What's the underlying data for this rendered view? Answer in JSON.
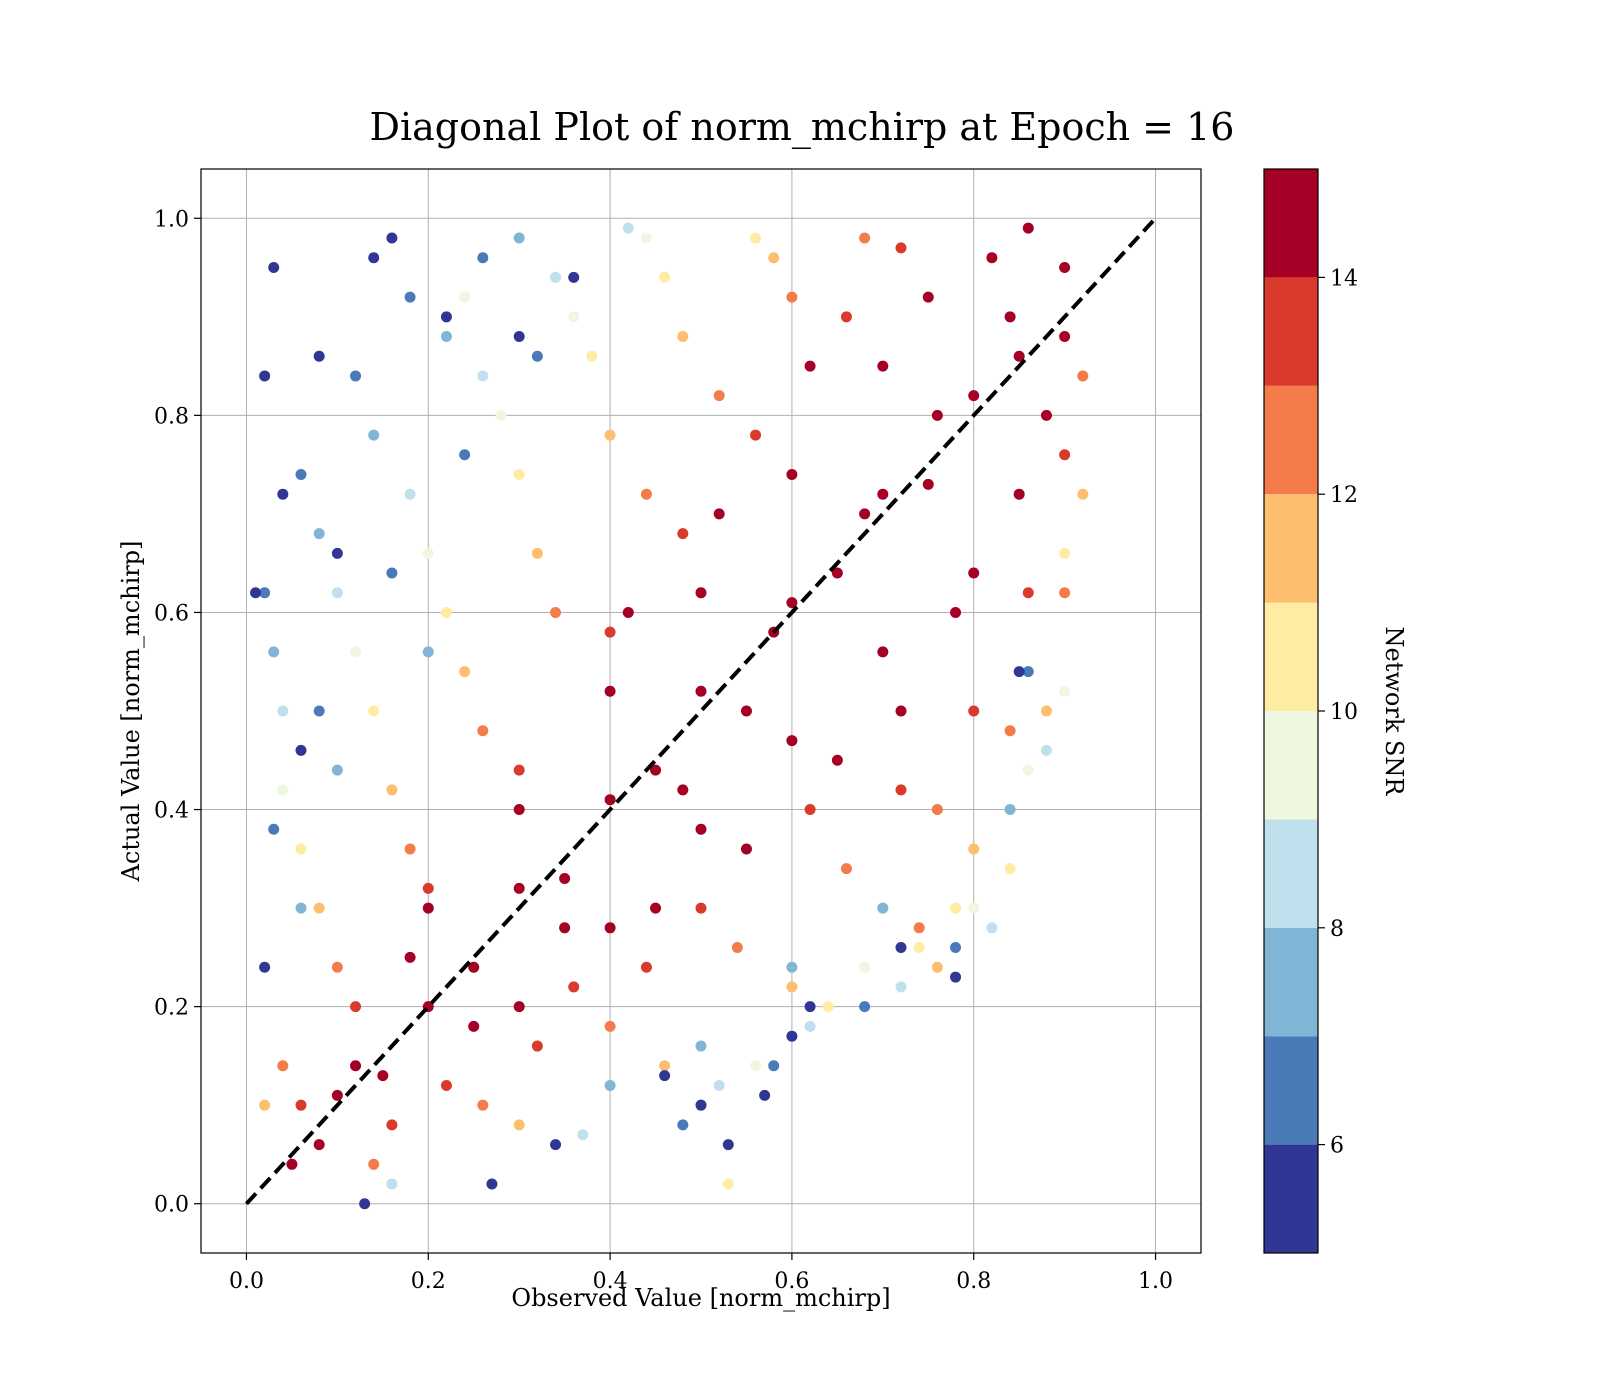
{
  "chart_data": {
    "type": "scatter",
    "title": "Diagonal Plot of norm_mchirp at Epoch = 16",
    "xlabel": "Observed Value [norm_mchirp]",
    "ylabel": "Actual Value [norm_mchirp]",
    "xlim": [
      -0.05,
      1.05
    ],
    "ylim": [
      -0.05,
      1.05
    ],
    "x_ticks": [
      "0.0",
      "0.2",
      "0.4",
      "0.6",
      "0.8",
      "1.0"
    ],
    "y_ticks": [
      "0.0",
      "0.2",
      "0.4",
      "0.6",
      "0.8",
      "1.0"
    ],
    "grid": true,
    "reference_line": {
      "x": [
        0,
        1
      ],
      "y": [
        0,
        1
      ],
      "style": "dashed",
      "color": "#000000"
    },
    "colorbar": {
      "label": "Network SNR",
      "range": [
        5,
        15
      ],
      "ticks": [
        "6",
        "8",
        "10",
        "12",
        "14"
      ],
      "bins": [
        {
          "from": 5,
          "to": 6,
          "color": "#313695"
        },
        {
          "from": 6,
          "to": 7,
          "color": "#4a7ab8"
        },
        {
          "from": 7,
          "to": 8,
          "color": "#80b5d6"
        },
        {
          "from": 8,
          "to": 9,
          "color": "#bfe0ec"
        },
        {
          "from": 9,
          "to": 10,
          "color": "#eef7df"
        },
        {
          "from": 10,
          "to": 11,
          "color": "#fdeca2"
        },
        {
          "from": 11,
          "to": 12,
          "color": "#fdbf6f"
        },
        {
          "from": 12,
          "to": 13,
          "color": "#f37c4a"
        },
        {
          "from": 13,
          "to": 14,
          "color": "#d93a2c"
        },
        {
          "from": 14,
          "to": 15,
          "color": "#a50026"
        }
      ]
    },
    "series": [
      {
        "snr": 14.5,
        "points": [
          [
            0.05,
            0.04
          ],
          [
            0.1,
            0.11
          ],
          [
            0.15,
            0.13
          ],
          [
            0.2,
            0.2
          ],
          [
            0.25,
            0.24
          ],
          [
            0.3,
            0.32
          ],
          [
            0.35,
            0.33
          ],
          [
            0.4,
            0.41
          ],
          [
            0.45,
            0.44
          ],
          [
            0.5,
            0.52
          ],
          [
            0.55,
            0.5
          ],
          [
            0.6,
            0.61
          ],
          [
            0.65,
            0.64
          ],
          [
            0.7,
            0.72
          ],
          [
            0.75,
            0.73
          ],
          [
            0.8,
            0.82
          ],
          [
            0.85,
            0.86
          ],
          [
            0.2,
            0.3
          ],
          [
            0.3,
            0.4
          ],
          [
            0.4,
            0.52
          ],
          [
            0.5,
            0.62
          ],
          [
            0.6,
            0.74
          ],
          [
            0.7,
            0.85
          ],
          [
            0.75,
            0.92
          ],
          [
            0.3,
            0.2
          ],
          [
            0.4,
            0.28
          ],
          [
            0.5,
            0.38
          ],
          [
            0.6,
            0.47
          ],
          [
            0.7,
            0.56
          ],
          [
            0.8,
            0.64
          ],
          [
            0.85,
            0.72
          ],
          [
            0.88,
            0.8
          ],
          [
            0.82,
            0.96
          ],
          [
            0.86,
            0.99
          ],
          [
            0.52,
            0.7
          ],
          [
            0.62,
            0.85
          ],
          [
            0.45,
            0.3
          ],
          [
            0.55,
            0.36
          ],
          [
            0.65,
            0.45
          ],
          [
            0.72,
            0.5
          ],
          [
            0.78,
            0.6
          ],
          [
            0.12,
            0.14
          ],
          [
            0.08,
            0.06
          ],
          [
            0.18,
            0.25
          ],
          [
            0.25,
            0.18
          ],
          [
            0.35,
            0.28
          ],
          [
            0.42,
            0.6
          ],
          [
            0.48,
            0.42
          ],
          [
            0.58,
            0.58
          ],
          [
            0.68,
            0.7
          ],
          [
            0.76,
            0.8
          ],
          [
            0.84,
            0.9
          ],
          [
            0.9,
            0.95
          ],
          [
            0.9,
            0.88
          ]
        ]
      },
      {
        "snr": 13.5,
        "points": [
          [
            0.12,
            0.2
          ],
          [
            0.2,
            0.32
          ],
          [
            0.3,
            0.44
          ],
          [
            0.4,
            0.58
          ],
          [
            0.48,
            0.68
          ],
          [
            0.56,
            0.78
          ],
          [
            0.66,
            0.9
          ],
          [
            0.72,
            0.97
          ],
          [
            0.36,
            0.22
          ],
          [
            0.5,
            0.3
          ],
          [
            0.62,
            0.4
          ],
          [
            0.72,
            0.42
          ],
          [
            0.8,
            0.5
          ],
          [
            0.86,
            0.62
          ],
          [
            0.9,
            0.76
          ],
          [
            0.22,
            0.12
          ],
          [
            0.32,
            0.16
          ],
          [
            0.44,
            0.24
          ],
          [
            0.16,
            0.08
          ],
          [
            0.06,
            0.1
          ]
        ]
      },
      {
        "snr": 12.5,
        "points": [
          [
            0.1,
            0.24
          ],
          [
            0.18,
            0.36
          ],
          [
            0.26,
            0.48
          ],
          [
            0.34,
            0.6
          ],
          [
            0.44,
            0.72
          ],
          [
            0.52,
            0.82
          ],
          [
            0.6,
            0.92
          ],
          [
            0.68,
            0.98
          ],
          [
            0.4,
            0.18
          ],
          [
            0.54,
            0.26
          ],
          [
            0.66,
            0.34
          ],
          [
            0.76,
            0.4
          ],
          [
            0.84,
            0.48
          ],
          [
            0.9,
            0.62
          ],
          [
            0.26,
            0.1
          ],
          [
            0.14,
            0.04
          ],
          [
            0.04,
            0.14
          ],
          [
            0.74,
            0.28
          ],
          [
            0.92,
            0.84
          ]
        ]
      },
      {
        "snr": 11.5,
        "points": [
          [
            0.08,
            0.3
          ],
          [
            0.16,
            0.42
          ],
          [
            0.24,
            0.54
          ],
          [
            0.32,
            0.66
          ],
          [
            0.4,
            0.78
          ],
          [
            0.48,
            0.88
          ],
          [
            0.58,
            0.96
          ],
          [
            0.46,
            0.14
          ],
          [
            0.6,
            0.22
          ],
          [
            0.7,
            0.3
          ],
          [
            0.8,
            0.36
          ],
          [
            0.88,
            0.5
          ],
          [
            0.92,
            0.72
          ],
          [
            0.3,
            0.08
          ],
          [
            0.02,
            0.1
          ],
          [
            0.76,
            0.24
          ]
        ]
      },
      {
        "snr": 10.5,
        "points": [
          [
            0.06,
            0.36
          ],
          [
            0.14,
            0.5
          ],
          [
            0.22,
            0.6
          ],
          [
            0.3,
            0.74
          ],
          [
            0.38,
            0.86
          ],
          [
            0.46,
            0.94
          ],
          [
            0.5,
            0.1
          ],
          [
            0.64,
            0.2
          ],
          [
            0.74,
            0.26
          ],
          [
            0.84,
            0.34
          ],
          [
            0.9,
            0.66
          ],
          [
            0.53,
            0.02
          ],
          [
            0.56,
            0.98
          ],
          [
            0.78,
            0.3
          ]
        ]
      },
      {
        "snr": 9.5,
        "points": [
          [
            0.04,
            0.42
          ],
          [
            0.12,
            0.56
          ],
          [
            0.2,
            0.66
          ],
          [
            0.28,
            0.8
          ],
          [
            0.36,
            0.9
          ],
          [
            0.44,
            0.98
          ],
          [
            0.56,
            0.14
          ],
          [
            0.68,
            0.24
          ],
          [
            0.8,
            0.3
          ],
          [
            0.9,
            0.52
          ],
          [
            0.86,
            0.44
          ],
          [
            0.24,
            0.92
          ]
        ]
      },
      {
        "snr": 8.5,
        "points": [
          [
            0.04,
            0.5
          ],
          [
            0.1,
            0.62
          ],
          [
            0.18,
            0.72
          ],
          [
            0.26,
            0.84
          ],
          [
            0.34,
            0.94
          ],
          [
            0.52,
            0.12
          ],
          [
            0.62,
            0.18
          ],
          [
            0.72,
            0.22
          ],
          [
            0.82,
            0.28
          ],
          [
            0.88,
            0.46
          ],
          [
            0.37,
            0.07
          ],
          [
            0.16,
            0.02
          ],
          [
            0.42,
            0.99
          ]
        ]
      },
      {
        "snr": 7.5,
        "points": [
          [
            0.03,
            0.56
          ],
          [
            0.08,
            0.68
          ],
          [
            0.14,
            0.78
          ],
          [
            0.22,
            0.88
          ],
          [
            0.3,
            0.98
          ],
          [
            0.5,
            0.16
          ],
          [
            0.6,
            0.24
          ],
          [
            0.7,
            0.3
          ],
          [
            0.84,
            0.4
          ],
          [
            0.4,
            0.12
          ],
          [
            0.06,
            0.3
          ],
          [
            0.1,
            0.44
          ],
          [
            0.2,
            0.56
          ]
        ]
      },
      {
        "snr": 6.5,
        "points": [
          [
            0.02,
            0.62
          ],
          [
            0.06,
            0.74
          ],
          [
            0.12,
            0.84
          ],
          [
            0.18,
            0.92
          ],
          [
            0.26,
            0.96
          ],
          [
            0.48,
            0.08
          ],
          [
            0.58,
            0.14
          ],
          [
            0.68,
            0.2
          ],
          [
            0.78,
            0.26
          ],
          [
            0.03,
            0.38
          ],
          [
            0.08,
            0.5
          ],
          [
            0.16,
            0.64
          ],
          [
            0.24,
            0.76
          ],
          [
            0.32,
            0.86
          ],
          [
            0.86,
            0.54
          ]
        ]
      },
      {
        "snr": 5.5,
        "points": [
          [
            0.01,
            0.62
          ],
          [
            0.04,
            0.72
          ],
          [
            0.08,
            0.86
          ],
          [
            0.14,
            0.96
          ],
          [
            0.22,
            0.9
          ],
          [
            0.3,
            0.88
          ],
          [
            0.36,
            0.94
          ],
          [
            0.5,
            0.1
          ],
          [
            0.53,
            0.06
          ],
          [
            0.57,
            0.11
          ],
          [
            0.34,
            0.06
          ],
          [
            0.46,
            0.13
          ],
          [
            0.27,
            0.02
          ],
          [
            0.13,
            0.0
          ],
          [
            0.62,
            0.2
          ],
          [
            0.78,
            0.23
          ],
          [
            0.6,
            0.17
          ],
          [
            0.02,
            0.24
          ],
          [
            0.06,
            0.46
          ],
          [
            0.1,
            0.66
          ],
          [
            0.02,
            0.84
          ],
          [
            0.72,
            0.26
          ],
          [
            0.85,
            0.54
          ],
          [
            0.16,
            0.98
          ],
          [
            0.03,
            0.95
          ]
        ]
      }
    ]
  }
}
